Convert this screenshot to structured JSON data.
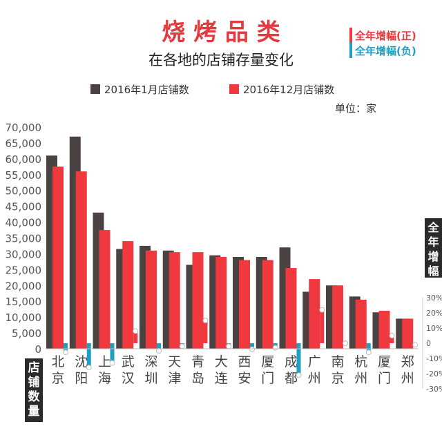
{
  "chart_data": {
    "type": "bar",
    "title": "烧 烤 品 类",
    "subtitle": "在各地的店铺存量变化",
    "unit_label": "单位：家",
    "left_axis_label": "店铺数量",
    "right_axis_label": "全年增幅",
    "categories": [
      "北京",
      "沈阳",
      "上海",
      "武汉",
      "深圳",
      "天津",
      "青岛",
      "大连",
      "西安",
      "厦门",
      "成都",
      "广州",
      "南京",
      "杭州",
      "厦门",
      "郑州"
    ],
    "series": [
      {
        "name": "2016年1月店铺数",
        "color": "#4a4342",
        "values": [
          61000,
          67000,
          43000,
          31500,
          32500,
          31000,
          26500,
          29500,
          29000,
          29000,
          32000,
          18000,
          20000,
          16500,
          11500,
          9500
        ]
      },
      {
        "name": "2016年12月店铺数",
        "color": "#f0383f",
        "values": [
          57500,
          56000,
          37500,
          34000,
          31000,
          30500,
          30500,
          29000,
          28000,
          28000,
          25500,
          22000,
          20000,
          15500,
          12000,
          9500
        ]
      }
    ],
    "growth_series": {
      "legend_positive": "全年增幅(正)",
      "legend_negative": "全年增幅(负)",
      "positive_color": "#f0383f",
      "negative_color": "#1fa0c3",
      "values": [
        -6,
        -16,
        -13,
        8,
        -5,
        -2,
        15,
        -2,
        -4,
        -3,
        -21,
        22,
        0,
        -6,
        5,
        -1
      ]
    },
    "ylim": [
      0,
      70000
    ],
    "yticks": [
      "70,000",
      "65,000",
      "60,000",
      "55,000",
      "50,000",
      "45,000",
      "40,000",
      "35,000",
      "30,000",
      "25,000",
      "20,000",
      "15,000",
      "10,000",
      "5,000",
      "0"
    ],
    "y2ticks": [
      "30%",
      "20%",
      "10%",
      "0",
      "-10%",
      "-20%",
      "-30%"
    ],
    "y2lim": [
      -30,
      30
    ]
  }
}
